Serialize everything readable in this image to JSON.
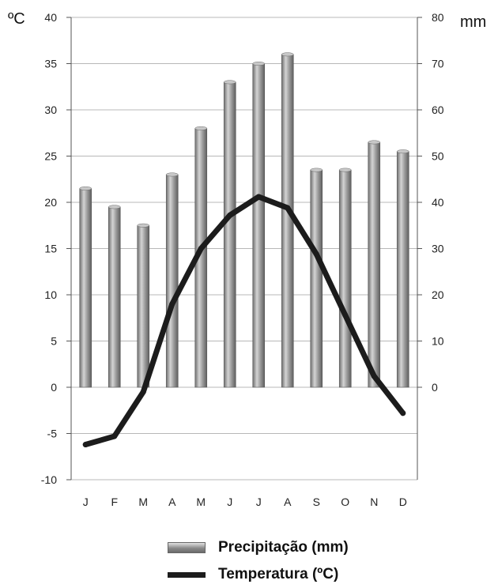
{
  "chart_data": {
    "type": "bar",
    "categories": [
      "J",
      "F",
      "M",
      "A",
      "M",
      "J",
      "J",
      "A",
      "S",
      "O",
      "N",
      "D"
    ],
    "series": [
      {
        "name": "Precipitação (mm)",
        "type": "bar",
        "axis": "right",
        "values": [
          43,
          39,
          35,
          46,
          56,
          66,
          70,
          72,
          47,
          47,
          53,
          51
        ]
      },
      {
        "name": "Temperatura (ºC)",
        "type": "line",
        "axis": "left",
        "values": [
          -6.2,
          -5.3,
          -0.5,
          9,
          15,
          18.6,
          20.6,
          19.4,
          14.4,
          7.8,
          1.2,
          -2.8
        ]
      }
    ],
    "left_axis": {
      "unit": "ºC",
      "ylim": [
        -10,
        40
      ],
      "ticks": [
        "40",
        "35",
        "30",
        "25",
        "20",
        "15",
        "10",
        "5",
        "0",
        "-5",
        "-10"
      ]
    },
    "right_axis": {
      "unit": "mm",
      "ylim": [
        -20,
        80
      ],
      "ticks": [
        "80",
        "70",
        "60",
        "50",
        "40",
        "30",
        "20",
        "10",
        "0"
      ]
    },
    "grid": true,
    "legend_position": "bottom",
    "colors": {
      "bar": "#8a8a8a",
      "line": "#1c1c1c",
      "grid": "#b8b8b8"
    }
  }
}
